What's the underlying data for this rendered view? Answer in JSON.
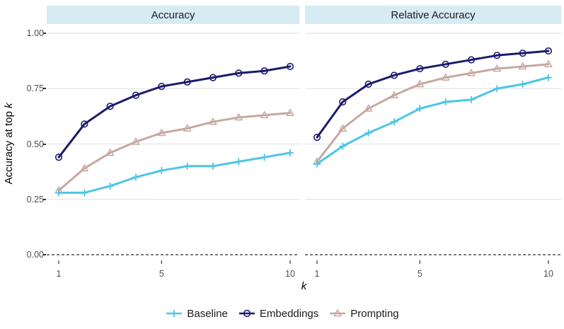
{
  "figure": {
    "y_axis_title_prefix": "Accuracy at top ",
    "y_axis_title_var": "k",
    "x_axis_title_var": "k"
  },
  "colors": {
    "strip_bg": "#d6ebf3",
    "grid": "#e5e5e5",
    "tick_mark": "#333333",
    "tick_text": "#4d4d4d",
    "hline": "#2b2b2b",
    "baseline": "#4cc5e6",
    "embeddings": "#1a1a6e",
    "prompting": "#c6a8a1"
  },
  "chart_data": {
    "type": "line",
    "title": "",
    "xlabel": "k",
    "ylabel": "Accuracy at top k",
    "x": [
      1,
      2,
      3,
      4,
      5,
      6,
      7,
      8,
      9,
      10
    ],
    "xticks": [
      1,
      5,
      10
    ],
    "ylim": [
      0,
      1
    ],
    "grid": "horizontal-major-only",
    "reference_line": {
      "y": 0.0,
      "style": "dashed"
    },
    "legend_position": "bottom",
    "yticks": [
      {
        "v": 0.0,
        "label": "0.00"
      },
      {
        "v": 0.25,
        "label": "0.25"
      },
      {
        "v": 0.5,
        "label": "0.50"
      },
      {
        "v": 0.75,
        "label": "0.75"
      },
      {
        "v": 1.0,
        "label": "1.00"
      }
    ],
    "facets": [
      {
        "title": "Accuracy",
        "series": [
          {
            "name": "Baseline",
            "marker": "plus",
            "color": "#4cc5e6",
            "values": [
              0.28,
              0.28,
              0.31,
              0.35,
              0.38,
              0.4,
              0.4,
              0.42,
              0.44,
              0.46
            ]
          },
          {
            "name": "Embeddings",
            "marker": "circle",
            "color": "#1a1a6e",
            "values": [
              0.44,
              0.59,
              0.67,
              0.72,
              0.76,
              0.78,
              0.8,
              0.82,
              0.83,
              0.85
            ]
          },
          {
            "name": "Prompting",
            "marker": "triangle",
            "color": "#c6a8a1",
            "values": [
              0.29,
              0.39,
              0.46,
              0.51,
              0.55,
              0.57,
              0.6,
              0.62,
              0.63,
              0.64
            ]
          }
        ]
      },
      {
        "title": "Relative Accuracy",
        "series": [
          {
            "name": "Baseline",
            "marker": "plus",
            "color": "#4cc5e6",
            "values": [
              0.41,
              0.49,
              0.55,
              0.6,
              0.66,
              0.69,
              0.7,
              0.75,
              0.77,
              0.8
            ]
          },
          {
            "name": "Embeddings",
            "marker": "circle",
            "color": "#1a1a6e",
            "values": [
              0.53,
              0.69,
              0.77,
              0.81,
              0.84,
              0.86,
              0.88,
              0.9,
              0.91,
              0.92
            ]
          },
          {
            "name": "Prompting",
            "marker": "triangle",
            "color": "#c6a8a1",
            "values": [
              0.42,
              0.57,
              0.66,
              0.72,
              0.77,
              0.8,
              0.82,
              0.84,
              0.85,
              0.86
            ]
          }
        ]
      }
    ],
    "legend": [
      {
        "label": "Baseline",
        "marker": "plus",
        "color": "#4cc5e6"
      },
      {
        "label": "Embeddings",
        "marker": "circle",
        "color": "#1a1a6e"
      },
      {
        "label": "Prompting",
        "marker": "triangle",
        "color": "#c6a8a1"
      }
    ]
  }
}
